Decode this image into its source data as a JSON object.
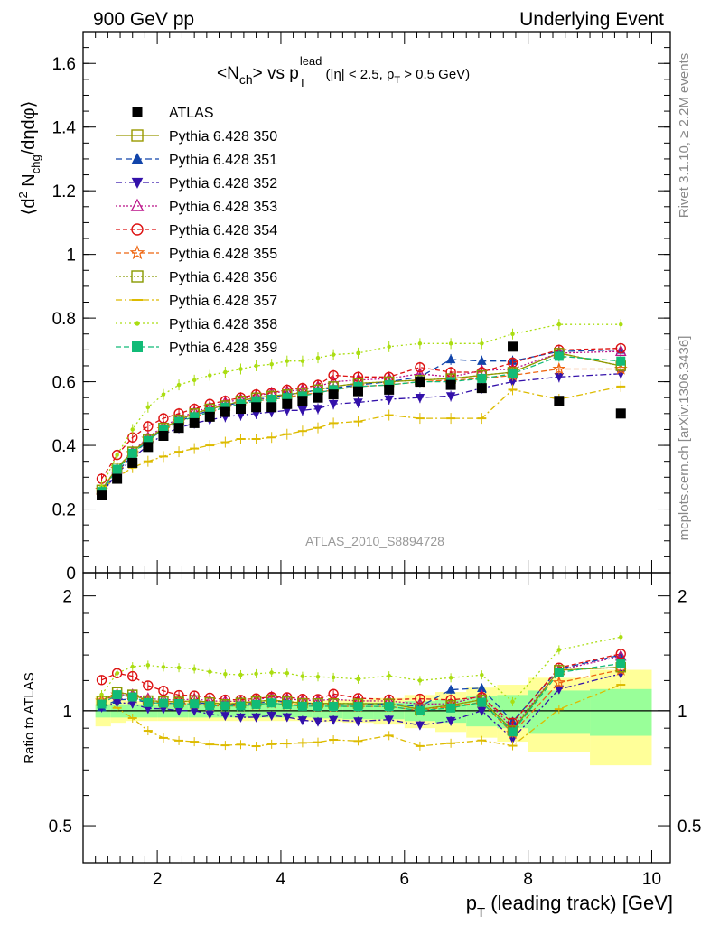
{
  "header": {
    "left_label": "900 GeV pp",
    "right_label": "Underlying Event",
    "side_rivet": "Rivet 3.1.10, ≥ 2.2M events",
    "side_mcplots": "mcplots.cern.ch [arXiv:1306.3436]",
    "analysis_id": "ATLAS_2010_S8894728"
  },
  "chart_data": [
    {
      "type": "line",
      "title_main": "<N",
      "title_sub1": "ch",
      "title_mid": "> vs p",
      "title_sup": "lead",
      "title_sub2": "T",
      "title_cut1": " (|η| < 2.5, p",
      "title_cut_sub": "T",
      "title_cut2": " > 0.5 GeV)",
      "ylabel_a": "⟨d",
      "ylabel_sup": "2",
      "ylabel_b": " N",
      "ylabel_sub": "chg",
      "ylabel_c": "/dηdφ⟩",
      "xlim": [
        0.8,
        10.3
      ],
      "ylim": [
        0,
        1.7
      ],
      "yticks": [
        0,
        0.2,
        0.4,
        0.6,
        0.8,
        1,
        1.2,
        1.4,
        1.6
      ],
      "ytick_labels": [
        "0",
        "0.2",
        "0.4",
        "0.6",
        "0.8",
        "1",
        "1.2",
        "1.4",
        "1.6"
      ],
      "x": [
        1.1,
        1.35,
        1.6,
        1.85,
        2.1,
        2.35,
        2.6,
        2.85,
        3.1,
        3.35,
        3.6,
        3.85,
        4.1,
        4.35,
        4.6,
        4.85,
        5.25,
        5.75,
        6.25,
        6.75,
        7.25,
        7.75,
        8.5,
        9.5
      ],
      "data": {
        "name": "ATLAS",
        "values": [
          0.245,
          0.295,
          0.345,
          0.395,
          0.43,
          0.455,
          0.47,
          0.49,
          0.505,
          0.515,
          0.52,
          0.52,
          0.53,
          0.54,
          0.55,
          0.56,
          0.57,
          0.575,
          0.6,
          0.59,
          0.58,
          0.71,
          0.54,
          0.5
        ]
      },
      "series": [
        {
          "name": "Pythia 6.428 350",
          "color": "#999900",
          "marker": "square-open",
          "dash": "",
          "values": [
            0.26,
            0.33,
            0.38,
            0.42,
            0.455,
            0.48,
            0.5,
            0.515,
            0.525,
            0.54,
            0.55,
            0.555,
            0.56,
            0.565,
            0.575,
            0.585,
            0.595,
            0.6,
            0.605,
            0.61,
            0.62,
            0.63,
            0.69,
            0.65
          ]
        },
        {
          "name": "Pythia 6.428 351",
          "color": "#1144aa",
          "marker": "triangle-up",
          "dash": "7,4",
          "values": [
            0.25,
            0.315,
            0.37,
            0.415,
            0.45,
            0.475,
            0.495,
            0.51,
            0.525,
            0.535,
            0.545,
            0.55,
            0.56,
            0.565,
            0.575,
            0.58,
            0.59,
            0.6,
            0.615,
            0.67,
            0.665,
            0.665,
            0.695,
            0.7
          ]
        },
        {
          "name": "Pythia 6.428 352",
          "color": "#3311aa",
          "marker": "triangle-down",
          "dash": "7,3,2,3",
          "values": [
            0.25,
            0.31,
            0.36,
            0.4,
            0.435,
            0.455,
            0.47,
            0.48,
            0.49,
            0.495,
            0.5,
            0.505,
            0.51,
            0.51,
            0.515,
            0.53,
            0.535,
            0.545,
            0.55,
            0.555,
            0.58,
            0.6,
            0.615,
            0.625
          ]
        },
        {
          "name": "Pythia 6.428 353",
          "color": "#bb1188",
          "marker": "triangle-up-open",
          "dash": "2,2",
          "values": [
            0.26,
            0.325,
            0.38,
            0.425,
            0.46,
            0.485,
            0.505,
            0.52,
            0.535,
            0.545,
            0.555,
            0.565,
            0.57,
            0.575,
            0.585,
            0.6,
            0.605,
            0.61,
            0.625,
            0.615,
            0.635,
            0.64,
            0.69,
            0.695
          ]
        },
        {
          "name": "Pythia 6.428 354",
          "color": "#dd1111",
          "marker": "circle-open",
          "dash": "5,3",
          "values": [
            0.295,
            0.37,
            0.425,
            0.46,
            0.485,
            0.5,
            0.515,
            0.53,
            0.54,
            0.55,
            0.56,
            0.565,
            0.575,
            0.58,
            0.59,
            0.62,
            0.615,
            0.615,
            0.645,
            0.63,
            0.63,
            0.66,
            0.7,
            0.705
          ]
        },
        {
          "name": "Pythia 6.428 355",
          "color": "#ee6611",
          "marker": "star-open",
          "dash": "6,3",
          "values": [
            0.26,
            0.325,
            0.375,
            0.42,
            0.45,
            0.475,
            0.49,
            0.505,
            0.52,
            0.53,
            0.54,
            0.545,
            0.55,
            0.56,
            0.565,
            0.575,
            0.585,
            0.59,
            0.6,
            0.605,
            0.61,
            0.62,
            0.64,
            0.64
          ]
        },
        {
          "name": "Pythia 6.428 356",
          "color": "#889900",
          "marker": "square-open",
          "dash": "2,2",
          "values": [
            0.26,
            0.33,
            0.38,
            0.42,
            0.455,
            0.48,
            0.5,
            0.515,
            0.525,
            0.54,
            0.55,
            0.555,
            0.56,
            0.565,
            0.575,
            0.585,
            0.595,
            0.6,
            0.605,
            0.61,
            0.62,
            0.63,
            0.69,
            0.65
          ]
        },
        {
          "name": "Pythia 6.428 357",
          "color": "#ddbb00",
          "marker": "dash",
          "dash": "7,3,2,3",
          "values": [
            0.26,
            0.3,
            0.33,
            0.35,
            0.365,
            0.38,
            0.39,
            0.4,
            0.41,
            0.42,
            0.42,
            0.425,
            0.435,
            0.445,
            0.455,
            0.47,
            0.475,
            0.495,
            0.485,
            0.485,
            0.485,
            0.575,
            0.545,
            0.585
          ]
        },
        {
          "name": "Pythia 6.428 358",
          "color": "#aadd11",
          "marker": "dot",
          "dash": "2,3",
          "values": [
            0.27,
            0.37,
            0.45,
            0.52,
            0.56,
            0.59,
            0.605,
            0.62,
            0.63,
            0.64,
            0.65,
            0.655,
            0.665,
            0.665,
            0.675,
            0.685,
            0.69,
            0.71,
            0.72,
            0.72,
            0.72,
            0.75,
            0.78,
            0.78
          ]
        },
        {
          "name": "Pythia 6.428 359",
          "color": "#11bb77",
          "marker": "square",
          "dash": "6,3",
          "values": [
            0.255,
            0.325,
            0.375,
            0.415,
            0.45,
            0.475,
            0.49,
            0.505,
            0.52,
            0.53,
            0.54,
            0.545,
            0.55,
            0.555,
            0.565,
            0.575,
            0.585,
            0.59,
            0.6,
            0.6,
            0.61,
            0.625,
            0.68,
            0.665
          ]
        }
      ]
    },
    {
      "type": "line",
      "ylabel": "Ratio to ATLAS",
      "xlabel_a": "p",
      "xlabel_sub": "T",
      "xlabel_b": " (leading track) [GeV]",
      "xlim": [
        0.8,
        10.3
      ],
      "ylim": [
        0.4,
        2.3
      ],
      "log_y": true,
      "yticks": [
        0.5,
        1,
        2
      ],
      "ytick_labels": [
        "0.5",
        "1",
        "2"
      ],
      "xticks": [
        2,
        4,
        6,
        8,
        10
      ],
      "xtick_labels": [
        "2",
        "4",
        "6",
        "8",
        "10"
      ],
      "bins": [
        {
          "lo": 1.0,
          "hi": 1.25,
          "stat": 0.04,
          "tot": 0.09
        },
        {
          "lo": 1.25,
          "hi": 1.5,
          "stat": 0.04,
          "tot": 0.07
        },
        {
          "lo": 1.5,
          "hi": 2.0,
          "stat": 0.04,
          "tot": 0.06
        },
        {
          "lo": 2.0,
          "hi": 2.5,
          "stat": 0.04,
          "tot": 0.06
        },
        {
          "lo": 2.5,
          "hi": 3.0,
          "stat": 0.04,
          "tot": 0.06
        },
        {
          "lo": 3.0,
          "hi": 3.5,
          "stat": 0.04,
          "tot": 0.06
        },
        {
          "lo": 3.5,
          "hi": 4.0,
          "stat": 0.04,
          "tot": 0.06
        },
        {
          "lo": 4.0,
          "hi": 4.5,
          "stat": 0.04,
          "tot": 0.06
        },
        {
          "lo": 4.5,
          "hi": 5.0,
          "stat": 0.045,
          "tot": 0.065
        },
        {
          "lo": 5.0,
          "hi": 5.5,
          "stat": 0.05,
          "tot": 0.07
        },
        {
          "lo": 5.5,
          "hi": 6.0,
          "stat": 0.05,
          "tot": 0.08
        },
        {
          "lo": 6.0,
          "hi": 6.5,
          "stat": 0.06,
          "tot": 0.1
        },
        {
          "lo": 6.5,
          "hi": 7.0,
          "stat": 0.07,
          "tot": 0.12
        },
        {
          "lo": 7.0,
          "hi": 7.5,
          "stat": 0.09,
          "tot": 0.15
        },
        {
          "lo": 7.5,
          "hi": 8.0,
          "stat": 0.1,
          "tot": 0.17
        },
        {
          "lo": 8.0,
          "hi": 9.0,
          "stat": 0.13,
          "tot": 0.22
        },
        {
          "lo": 9.0,
          "hi": 10.0,
          "stat": 0.14,
          "tot": 0.28
        }
      ]
    }
  ]
}
